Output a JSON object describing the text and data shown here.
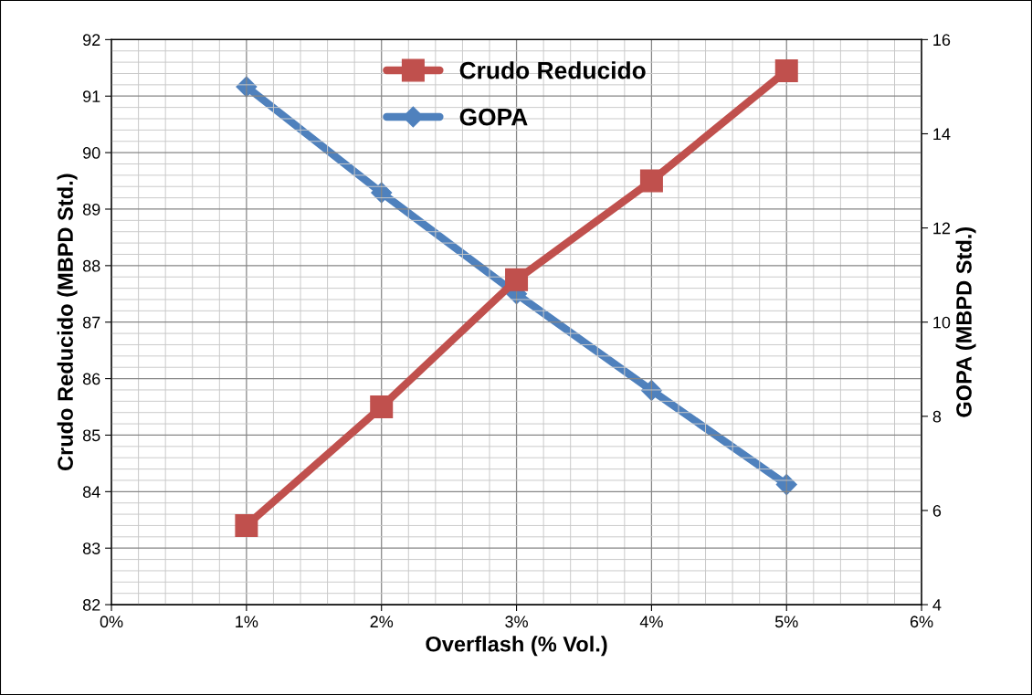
{
  "chart_data": {
    "type": "line",
    "xlabel": "Overflash (% Vol.)",
    "ylabel": "Crudo Reducido (MBPD Std.)",
    "y2label": "GOPA (MBPD Std.)",
    "x": [
      1,
      2,
      3,
      4,
      5
    ],
    "series": [
      {
        "name": "Crudo Reducido",
        "color": "#c0504d",
        "marker": "square",
        "values": [
          83.4,
          85.5,
          87.75,
          89.5,
          91.45
        ]
      },
      {
        "name": "GOPA",
        "color": "#4f81bd",
        "marker": "diamond",
        "axis": "y2",
        "values": [
          15.0,
          12.75,
          10.6,
          8.55,
          6.55
        ]
      }
    ],
    "xlim": [
      0,
      6
    ],
    "xticks": [
      {
        "value": 0,
        "label": "0%"
      },
      {
        "value": 1,
        "label": "1%"
      },
      {
        "value": 2,
        "label": "2%"
      },
      {
        "value": 3,
        "label": "3%"
      },
      {
        "value": 4,
        "label": "4%"
      },
      {
        "value": 5,
        "label": "5%"
      },
      {
        "value": 6,
        "label": "6%"
      }
    ],
    "ylim": [
      82,
      92
    ],
    "yticks": [
      82,
      83,
      84,
      85,
      86,
      87,
      88,
      89,
      90,
      91,
      92
    ],
    "y2lim": [
      4,
      16
    ],
    "y2ticks": [
      4,
      6,
      8,
      10,
      12,
      14,
      16
    ],
    "grid": true,
    "legend": "top",
    "line_style": "solid"
  }
}
